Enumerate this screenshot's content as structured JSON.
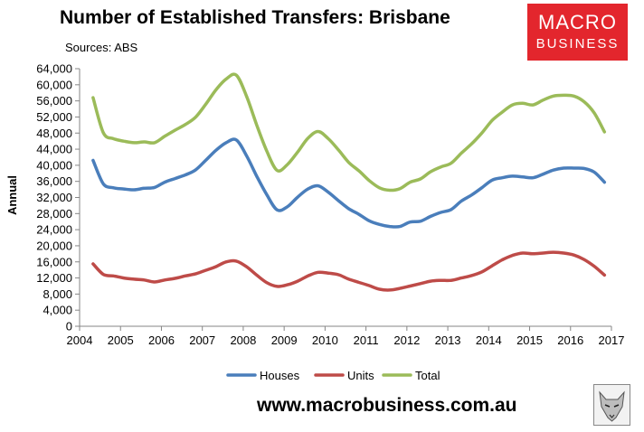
{
  "header": {
    "title": "Number of Established Transfers: Brisbane",
    "subtitle": "Sources: ABS"
  },
  "branding": {
    "logo_line1": "MACRO",
    "logo_line2": "BUSINESS",
    "logo_color": "#e3262d",
    "website": "www.macrobusiness.com.au",
    "mascot_icon": "wolf-icon"
  },
  "chart_data": {
    "type": "line",
    "title": "Number of Established Transfers: Brisbane",
    "ylabel": "Annual",
    "xlabel": "",
    "ylim": [
      0,
      64000
    ],
    "yticks": [
      0,
      4000,
      8000,
      12000,
      16000,
      20000,
      24000,
      28000,
      32000,
      36000,
      40000,
      44000,
      48000,
      52000,
      56000,
      60000,
      64000
    ],
    "ytick_labels": [
      "0",
      "4,000",
      "8,000",
      "12,000",
      "16,000",
      "20,000",
      "24,000",
      "28,000",
      "32,000",
      "36,000",
      "40,000",
      "44,000",
      "48,000",
      "52,000",
      "56,000",
      "60,000",
      "64,000"
    ],
    "xlim": [
      2004,
      2017
    ],
    "xticks": [
      2004,
      2005,
      2006,
      2007,
      2008,
      2009,
      2010,
      2011,
      2012,
      2013,
      2014,
      2015,
      2016,
      2017
    ],
    "grid": false,
    "legend_position": "bottom",
    "x": [
      2004.33,
      2004.58,
      2004.83,
      2005.08,
      2005.33,
      2005.58,
      2005.83,
      2006.08,
      2006.33,
      2006.58,
      2006.83,
      2007.08,
      2007.33,
      2007.58,
      2007.83,
      2008.08,
      2008.33,
      2008.58,
      2008.83,
      2009.08,
      2009.33,
      2009.58,
      2009.83,
      2010.08,
      2010.33,
      2010.58,
      2010.83,
      2011.08,
      2011.33,
      2011.58,
      2011.83,
      2012.08,
      2012.33,
      2012.58,
      2012.83,
      2013.08,
      2013.33,
      2013.58,
      2013.83,
      2014.08,
      2014.33,
      2014.58,
      2014.83,
      2015.08,
      2015.33,
      2015.58,
      2015.83,
      2016.08,
      2016.33,
      2016.58,
      2016.83
    ],
    "series": [
      {
        "name": "Houses",
        "color": "#4a7ebb",
        "values": [
          41200,
          35400,
          34400,
          34100,
          33900,
          34300,
          34500,
          35800,
          36700,
          37600,
          38800,
          41200,
          43700,
          45600,
          46300,
          42400,
          37300,
          32600,
          28900,
          29700,
          32100,
          34100,
          34900,
          33300,
          31200,
          29200,
          27800,
          26200,
          25300,
          24800,
          24800,
          25900,
          26100,
          27300,
          28300,
          29000,
          31100,
          32600,
          34400,
          36300,
          36900,
          37300,
          37100,
          36900,
          37800,
          38800,
          39300,
          39300,
          39200,
          38300,
          35800
        ]
      },
      {
        "name": "Units",
        "color": "#be4b48",
        "values": [
          15500,
          12900,
          12500,
          12000,
          11700,
          11500,
          11000,
          11500,
          11900,
          12500,
          13000,
          13900,
          14800,
          16000,
          16200,
          14800,
          12700,
          10800,
          9900,
          10300,
          11200,
          12500,
          13400,
          13200,
          12800,
          11700,
          10900,
          10100,
          9200,
          9000,
          9400,
          10000,
          10600,
          11200,
          11400,
          11400,
          12000,
          12600,
          13500,
          15000,
          16500,
          17600,
          18200,
          18000,
          18200,
          18400,
          18200,
          17700,
          16600,
          14900,
          12700
        ]
      },
      {
        "name": "Total",
        "color": "#9bbb59",
        "values": [
          56800,
          48100,
          46600,
          46000,
          45600,
          45800,
          45600,
          47200,
          48700,
          50100,
          51900,
          55100,
          58700,
          61400,
          62400,
          57200,
          50000,
          43400,
          38700,
          40200,
          43300,
          46700,
          48400,
          46600,
          43800,
          40700,
          38600,
          36200,
          34400,
          33800,
          34200,
          35800,
          36600,
          38400,
          39600,
          40500,
          43000,
          45300,
          48000,
          51100,
          53200,
          55000,
          55400,
          55000,
          56200,
          57200,
          57400,
          57200,
          55800,
          53000,
          48300
        ]
      }
    ]
  }
}
